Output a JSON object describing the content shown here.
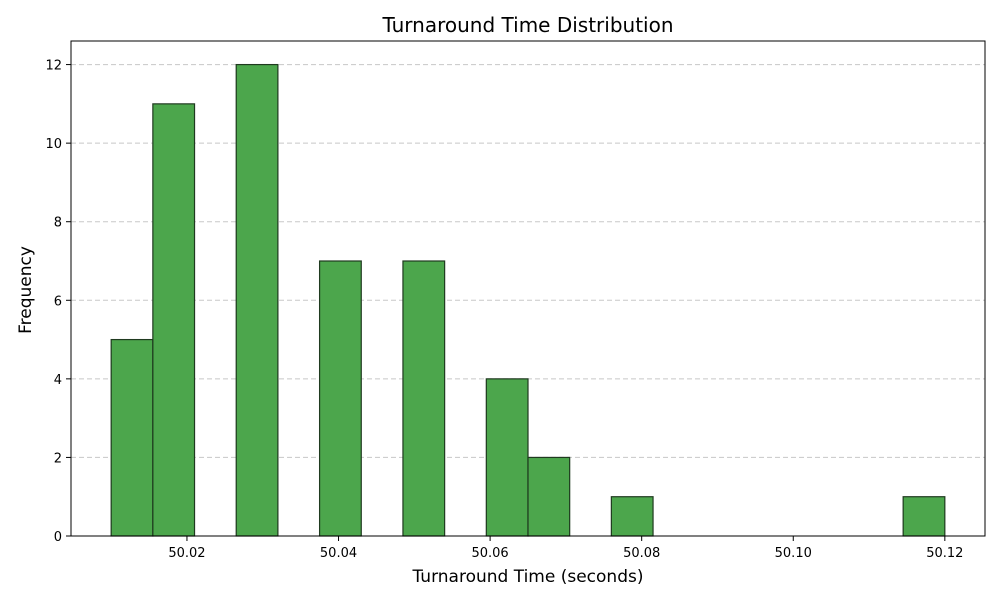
{
  "chart_data": {
    "type": "bar",
    "title": "Turnaround Time Distribution",
    "xlabel": "Turnaround Time (seconds)",
    "ylabel": "Frequency",
    "xlim": [
      50.0047,
      50.1253
    ],
    "ylim": [
      0,
      12.6
    ],
    "xticks": [
      50.02,
      50.04,
      50.06,
      50.08,
      50.1,
      50.12
    ],
    "xtick_labels": [
      "50.02",
      "50.04",
      "50.06",
      "50.08",
      "50.10",
      "50.12"
    ],
    "yticks": [
      0,
      2,
      4,
      6,
      8,
      10,
      12
    ],
    "ytick_labels": [
      "0",
      "2",
      "4",
      "6",
      "8",
      "10",
      "12"
    ],
    "bins": [
      {
        "start": 50.01,
        "end": 50.0155,
        "count": 5
      },
      {
        "start": 50.0155,
        "end": 50.021,
        "count": 11
      },
      {
        "start": 50.021,
        "end": 50.0265,
        "count": 0
      },
      {
        "start": 50.0265,
        "end": 50.032,
        "count": 12
      },
      {
        "start": 50.032,
        "end": 50.0375,
        "count": 0
      },
      {
        "start": 50.0375,
        "end": 50.043,
        "count": 7
      },
      {
        "start": 50.043,
        "end": 50.0485,
        "count": 0
      },
      {
        "start": 50.0485,
        "end": 50.054,
        "count": 7
      },
      {
        "start": 50.054,
        "end": 50.0595,
        "count": 0
      },
      {
        "start": 50.0595,
        "end": 50.065,
        "count": 4
      },
      {
        "start": 50.065,
        "end": 50.0705,
        "count": 2
      },
      {
        "start": 50.0705,
        "end": 50.076,
        "count": 0
      },
      {
        "start": 50.076,
        "end": 50.0815,
        "count": 1
      },
      {
        "start": 50.0815,
        "end": 50.087,
        "count": 0
      },
      {
        "start": 50.087,
        "end": 50.0925,
        "count": 0
      },
      {
        "start": 50.0925,
        "end": 50.098,
        "count": 0
      },
      {
        "start": 50.098,
        "end": 50.1035,
        "count": 0
      },
      {
        "start": 50.1035,
        "end": 50.109,
        "count": 0
      },
      {
        "start": 50.109,
        "end": 50.1145,
        "count": 0
      },
      {
        "start": 50.1145,
        "end": 50.12,
        "count": 1
      }
    ],
    "grid": "y-dashed",
    "colors": {
      "bar_fill": "#4ca64c",
      "bar_edge": "#1f3a1f",
      "grid": "#c8c8c8"
    }
  }
}
